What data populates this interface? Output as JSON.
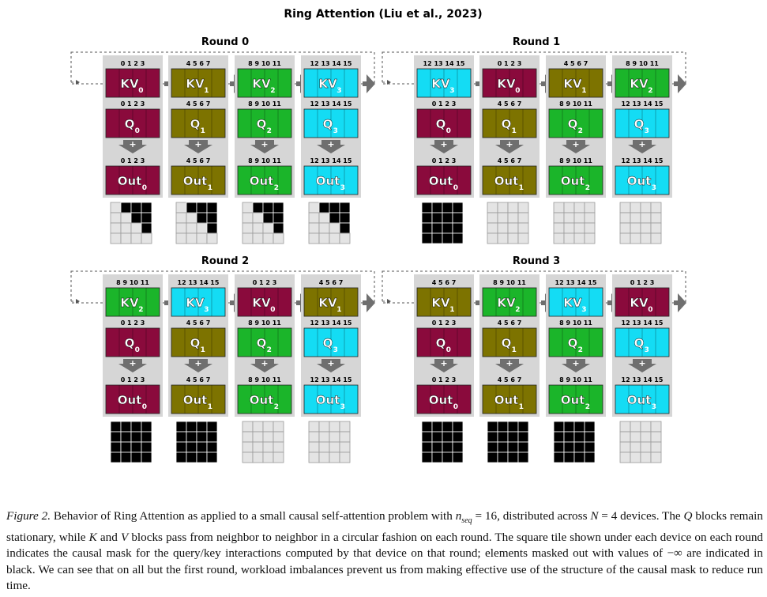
{
  "title": "Ring Attention (Liu et al., 2023)",
  "colors": {
    "device0": "#8a0a3c",
    "device1": "#7d7300",
    "device2": "#1bb52a",
    "device3": "#14dcf4",
    "column_bg": "#d6d6d6",
    "arrow": "#6f6f6f",
    "mask_black": "#000000",
    "mask_white": "#e4e4e4"
  },
  "index_labels": [
    "0 1 2 3",
    "4 5 6 7",
    "8 9 10 11",
    "12 13 14 15"
  ],
  "plus_symbol": "+",
  "blocks": {
    "kv": "KV",
    "q": "Q",
    "out": "Out"
  },
  "rounds": [
    {
      "label": "Round 0",
      "kv_blocks": [
        0,
        1,
        2,
        3
      ],
      "masks": [
        "diag",
        "diag",
        "diag",
        "diag"
      ]
    },
    {
      "label": "Round 1",
      "kv_blocks": [
        3,
        0,
        1,
        2
      ],
      "masks": [
        "black",
        "white",
        "white",
        "white"
      ]
    },
    {
      "label": "Round 2",
      "kv_blocks": [
        2,
        3,
        0,
        1
      ],
      "masks": [
        "black",
        "black",
        "white",
        "white"
      ]
    },
    {
      "label": "Round 3",
      "kv_blocks": [
        1,
        2,
        3,
        0
      ],
      "masks": [
        "black",
        "black",
        "black",
        "white"
      ]
    }
  ],
  "caption": {
    "figure_label": "Figure 2.",
    "text_1": " Behavior of Ring Attention as applied to a small causal self-attention problem with ",
    "n_seq": "n",
    "n_seq_sub": "seq",
    "text_2": " = 16, distributed across ",
    "N": "N",
    "text_3": " = 4 devices. The ",
    "Q": "Q",
    "text_4": " blocks remain stationary, while ",
    "K": "K",
    "text_5": " and ",
    "V": "V",
    "text_6": " blocks pass from neighbor to neighbor in a circular fashion on each round. The square tile shown under each device on each round indicates the causal mask for the query/key interactions computed by that device on that round; elements masked out with values of −∞ are indicated in black. We can see that on all but the first round, workload imbalances prevent us from making effective use of the structure of the causal mask to reduce run time."
  }
}
